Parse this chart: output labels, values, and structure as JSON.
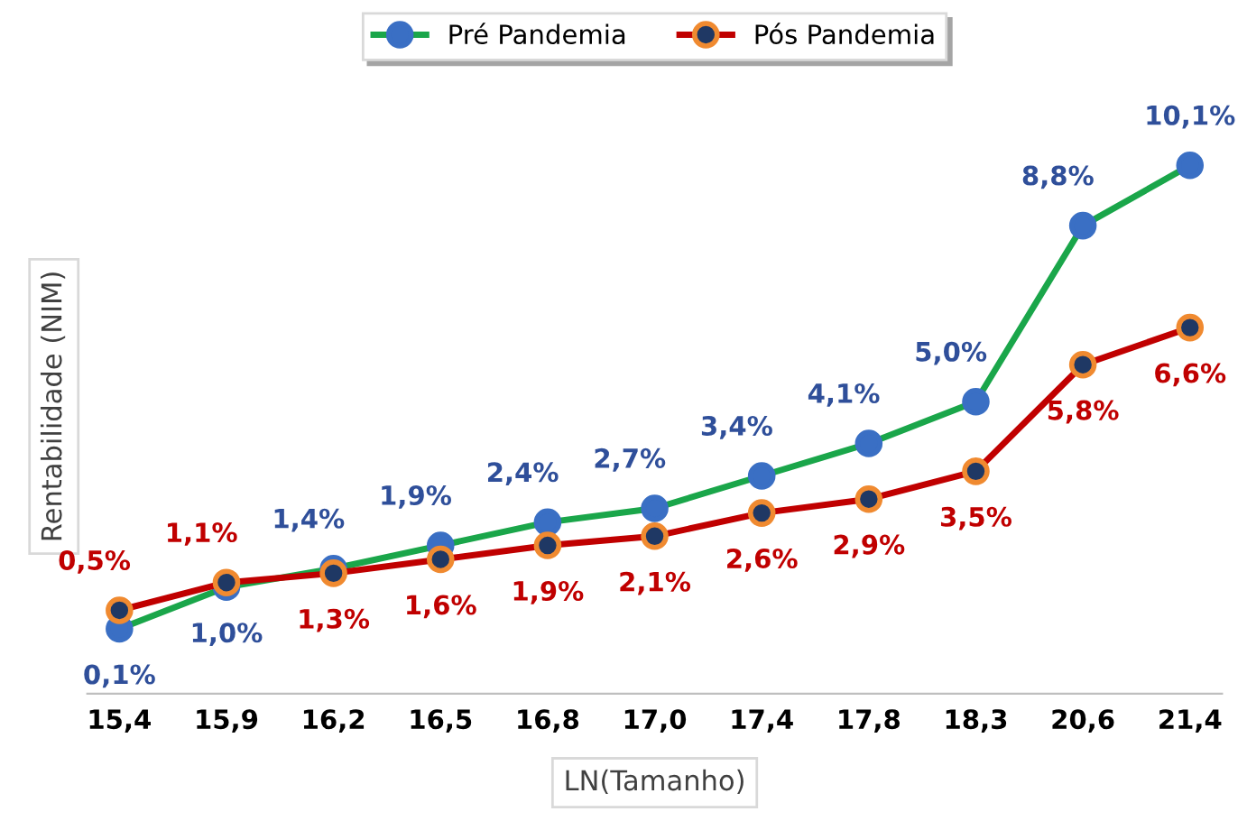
{
  "chart_data": {
    "type": "line",
    "xlabel": "LN(Tamanho)",
    "ylabel": "Rentabilidade (NIM)",
    "categories": [
      "15,4",
      "15,9",
      "16,2",
      "16,5",
      "16,8",
      "17,0",
      "17,4",
      "17,8",
      "18,3",
      "20,6",
      "21,4"
    ],
    "series": [
      {
        "name": "Pré Pandemia",
        "color": "#1aa64a",
        "values": [
          0.1,
          1.0,
          1.4,
          1.9,
          2.4,
          2.7,
          3.4,
          4.1,
          5.0,
          8.8,
          10.1
        ],
        "value_labels": [
          "0,1%",
          "1,0%",
          "1,4%",
          "1,9%",
          "2,4%",
          "2,7%",
          "3,4%",
          "4,1%",
          "5,0%",
          "8,8%",
          "10,1%"
        ]
      },
      {
        "name": "Pós Pandemia",
        "color": "#c00000",
        "values": [
          0.5,
          1.1,
          1.3,
          1.6,
          1.9,
          2.1,
          2.6,
          2.9,
          3.5,
          5.8,
          6.6
        ],
        "value_labels": [
          "0,5%",
          "1,1%",
          "1,3%",
          "1,6%",
          "1,9%",
          "2,1%",
          "2,6%",
          "2,9%",
          "3,5%",
          "5,8%",
          "6,6%"
        ]
      }
    ],
    "marker": "circle",
    "line_style": "solid",
    "legend": "top",
    "grid": false
  }
}
